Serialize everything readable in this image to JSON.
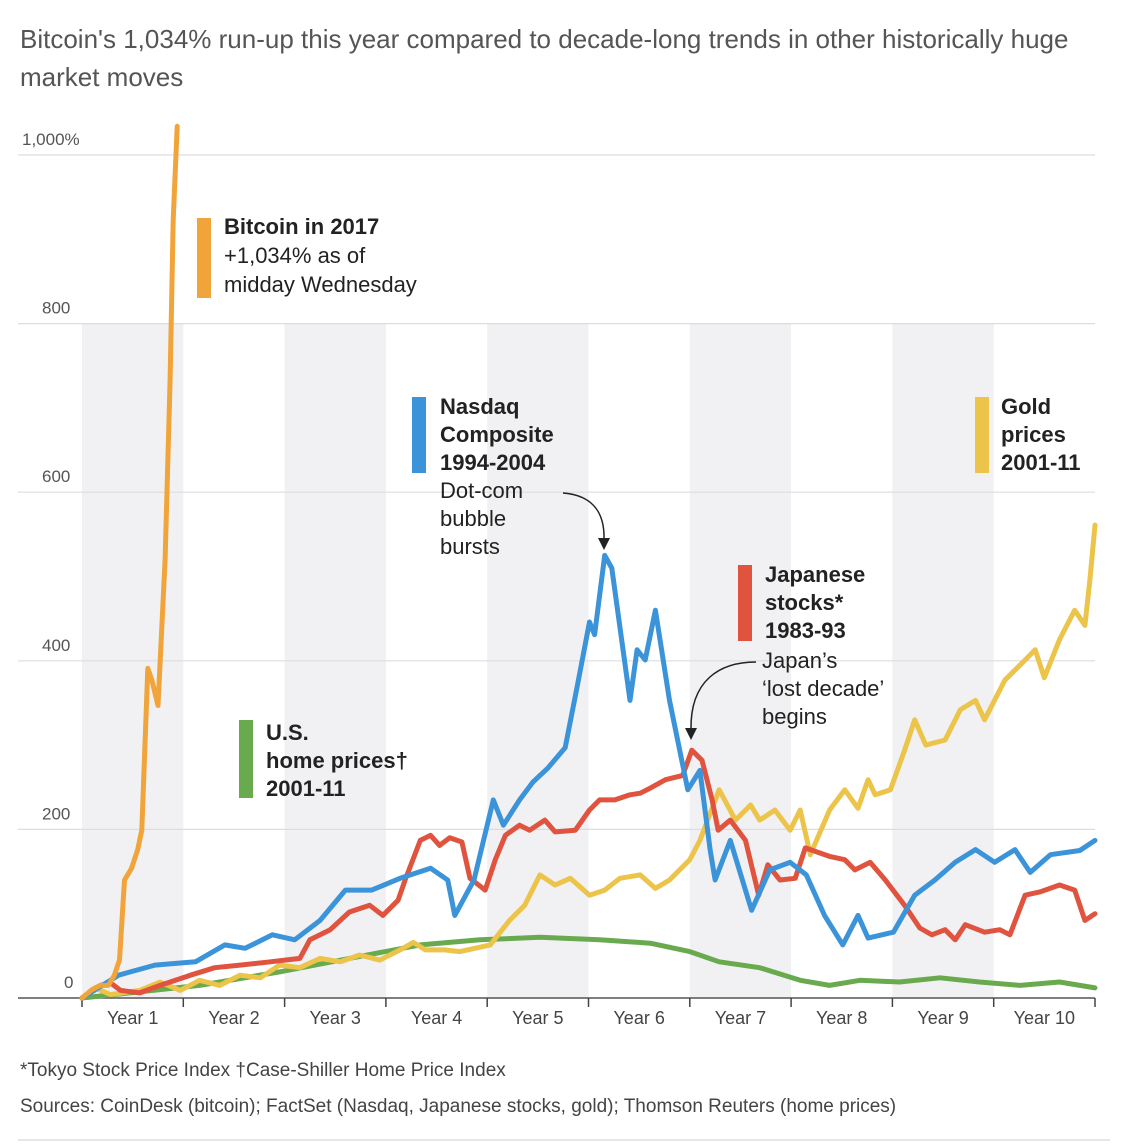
{
  "title": "Bitcoin's 1,034% run-up this year compared to decade-long trends in other historically huge market moves",
  "footnote": "*Tokyo Stock Price Index   †Case-Shiller Home Price Index",
  "sources": "Sources: CoinDesk (bitcoin); FactSet (Nasdaq, Japanese stocks, gold); Thomson Reuters (home prices)",
  "chart_data": {
    "type": "line",
    "title": "Bitcoin's 1,034% run-up this year compared to decade-long trends in other historically huge market moves",
    "xlim": [
      0,
      10
    ],
    "ylim": [
      0,
      1000
    ],
    "grid": true,
    "x_tick_labels": [
      "Year 1",
      "Year 2",
      "Year 3",
      "Year 4",
      "Year 5",
      "Year 6",
      "Year 7",
      "Year 8",
      "Year 9",
      "Year 10"
    ],
    "y_tick_labels": [
      "0",
      "200",
      "400",
      "600",
      "800",
      "1,000%"
    ],
    "y_ticks": [
      0,
      200,
      400,
      600,
      800,
      1000
    ],
    "shaded_years": [
      1,
      3,
      5,
      7,
      9
    ],
    "series": [
      {
        "name": "Bitcoin in 2017",
        "color": "#f0a43a",
        "label_lines": [
          "Bitcoin in 2017"
        ],
        "note_lines": [
          "+1,034% as of",
          "midday Wednesday"
        ],
        "points": [
          [
            0,
            0
          ],
          [
            0.1,
            10
          ],
          [
            0.18,
            15
          ],
          [
            0.26,
            15
          ],
          [
            0.32,
            27
          ],
          [
            0.37,
            45
          ],
          [
            0.42,
            140
          ],
          [
            0.49,
            154
          ],
          [
            0.55,
            176
          ],
          [
            0.59,
            199
          ],
          [
            0.65,
            391
          ],
          [
            0.69,
            377
          ],
          [
            0.75,
            347
          ],
          [
            0.82,
            520
          ],
          [
            0.87,
            733
          ],
          [
            0.9,
            923
          ],
          [
            0.94,
            1034
          ]
        ]
      },
      {
        "name": "Nasdaq Composite 1994-2004",
        "color": "#3b94d9",
        "label_lines": [
          "Nasdaq",
          "Composite",
          "1994-2004"
        ],
        "note_lines": [
          "Dot-com",
          "bubble",
          "bursts"
        ],
        "points": [
          [
            0,
            0
          ],
          [
            0.36,
            27
          ],
          [
            0.72,
            39
          ],
          [
            1.12,
            43
          ],
          [
            1.41,
            63
          ],
          [
            1.61,
            59
          ],
          [
            1.88,
            75
          ],
          [
            2.1,
            69
          ],
          [
            2.35,
            92
          ],
          [
            2.6,
            128
          ],
          [
            2.86,
            128
          ],
          [
            3.14,
            142
          ],
          [
            3.44,
            154
          ],
          [
            3.61,
            140
          ],
          [
            3.68,
            98
          ],
          [
            3.87,
            140
          ],
          [
            4.06,
            235
          ],
          [
            4.16,
            205
          ],
          [
            4.32,
            235
          ],
          [
            4.45,
            256
          ],
          [
            4.6,
            273
          ],
          [
            4.77,
            297
          ],
          [
            4.9,
            377
          ],
          [
            5.01,
            446
          ],
          [
            5.06,
            431
          ],
          [
            5.16,
            525
          ],
          [
            5.23,
            510
          ],
          [
            5.41,
            353
          ],
          [
            5.48,
            413
          ],
          [
            5.56,
            401
          ],
          [
            5.66,
            460
          ],
          [
            5.8,
            353
          ],
          [
            5.98,
            247
          ],
          [
            6.1,
            270
          ],
          [
            6.2,
            176
          ],
          [
            6.25,
            140
          ],
          [
            6.4,
            187
          ],
          [
            6.61,
            104
          ],
          [
            6.79,
            152
          ],
          [
            6.99,
            161
          ],
          [
            7.15,
            146
          ],
          [
            7.33,
            98
          ],
          [
            7.51,
            63
          ],
          [
            7.66,
            98
          ],
          [
            7.76,
            71
          ],
          [
            8.01,
            78
          ],
          [
            8.22,
            122
          ],
          [
            8.42,
            140
          ],
          [
            8.62,
            161
          ],
          [
            8.82,
            176
          ],
          [
            9.01,
            161
          ],
          [
            9.21,
            176
          ],
          [
            9.36,
            149
          ],
          [
            9.56,
            170
          ],
          [
            9.85,
            175
          ],
          [
            10,
            187
          ]
        ]
      },
      {
        "name": "Japanese stocks* 1983-93",
        "color": "#e0533f",
        "label_lines": [
          "Japanese",
          "stocks*",
          "1983-93"
        ],
        "note_lines": [
          "Japan’s",
          "‘lost decade’",
          "begins"
        ],
        "points": [
          [
            0,
            0
          ],
          [
            0.18,
            15
          ],
          [
            0.28,
            18
          ],
          [
            0.38,
            9
          ],
          [
            0.57,
            6
          ],
          [
            0.77,
            15
          ],
          [
            1.07,
            27
          ],
          [
            1.31,
            36
          ],
          [
            1.56,
            39
          ],
          [
            1.86,
            43
          ],
          [
            2.15,
            47
          ],
          [
            2.25,
            69
          ],
          [
            2.45,
            81
          ],
          [
            2.64,
            102
          ],
          [
            2.84,
            110
          ],
          [
            2.97,
            98
          ],
          [
            3.12,
            116
          ],
          [
            3.19,
            140
          ],
          [
            3.34,
            187
          ],
          [
            3.44,
            193
          ],
          [
            3.53,
            181
          ],
          [
            3.63,
            190
          ],
          [
            3.75,
            185
          ],
          [
            3.83,
            142
          ],
          [
            3.98,
            128
          ],
          [
            4.08,
            164
          ],
          [
            4.18,
            193
          ],
          [
            4.32,
            205
          ],
          [
            4.42,
            199
          ],
          [
            4.57,
            211
          ],
          [
            4.67,
            197
          ],
          [
            4.87,
            199
          ],
          [
            5.01,
            223
          ],
          [
            5.11,
            235
          ],
          [
            5.26,
            235
          ],
          [
            5.41,
            241
          ],
          [
            5.51,
            243
          ],
          [
            5.61,
            249
          ],
          [
            5.76,
            259
          ],
          [
            5.93,
            264
          ],
          [
            6.02,
            294
          ],
          [
            6.12,
            282
          ],
          [
            6.22,
            235
          ],
          [
            6.28,
            199
          ],
          [
            6.4,
            211
          ],
          [
            6.55,
            187
          ],
          [
            6.68,
            122
          ],
          [
            6.77,
            158
          ],
          [
            6.89,
            140
          ],
          [
            7.04,
            142
          ],
          [
            7.14,
            178
          ],
          [
            7.38,
            168
          ],
          [
            7.53,
            164
          ],
          [
            7.63,
            152
          ],
          [
            7.78,
            161
          ],
          [
            7.93,
            140
          ],
          [
            8.12,
            110
          ],
          [
            8.27,
            83
          ],
          [
            8.39,
            75
          ],
          [
            8.52,
            81
          ],
          [
            8.62,
            69
          ],
          [
            8.72,
            87
          ],
          [
            8.91,
            78
          ],
          [
            9.06,
            81
          ],
          [
            9.16,
            75
          ],
          [
            9.31,
            122
          ],
          [
            9.46,
            126
          ],
          [
            9.65,
            134
          ],
          [
            9.8,
            128
          ],
          [
            9.9,
            92
          ],
          [
            10,
            100
          ]
        ]
      },
      {
        "name": "Gold prices 2001-11",
        "color": "#ecc44a",
        "label_lines": [
          "Gold",
          "prices",
          "2001-11"
        ],
        "note_lines": [],
        "points": [
          [
            0,
            0
          ],
          [
            0.13,
            12
          ],
          [
            0.28,
            4
          ],
          [
            0.57,
            9
          ],
          [
            0.77,
            19
          ],
          [
            0.97,
            9
          ],
          [
            1.16,
            21
          ],
          [
            1.36,
            15
          ],
          [
            1.56,
            27
          ],
          [
            1.76,
            24
          ],
          [
            1.95,
            39
          ],
          [
            2.15,
            36
          ],
          [
            2.35,
            47
          ],
          [
            2.55,
            43
          ],
          [
            2.74,
            51
          ],
          [
            2.94,
            45
          ],
          [
            3.14,
            57
          ],
          [
            3.27,
            66
          ],
          [
            3.39,
            57
          ],
          [
            3.58,
            57
          ],
          [
            3.73,
            55
          ],
          [
            3.88,
            59
          ],
          [
            4.03,
            63
          ],
          [
            4.22,
            92
          ],
          [
            4.37,
            110
          ],
          [
            4.52,
            146
          ],
          [
            4.67,
            134
          ],
          [
            4.82,
            142
          ],
          [
            5.01,
            122
          ],
          [
            5.16,
            128
          ],
          [
            5.31,
            142
          ],
          [
            5.51,
            146
          ],
          [
            5.66,
            130
          ],
          [
            5.8,
            140
          ],
          [
            6.0,
            164
          ],
          [
            6.1,
            187
          ],
          [
            6.29,
            247
          ],
          [
            6.45,
            211
          ],
          [
            6.6,
            229
          ],
          [
            6.69,
            211
          ],
          [
            6.84,
            223
          ],
          [
            6.99,
            199
          ],
          [
            7.09,
            223
          ],
          [
            7.19,
            170
          ],
          [
            7.38,
            223
          ],
          [
            7.53,
            247
          ],
          [
            7.66,
            225
          ],
          [
            7.76,
            259
          ],
          [
            7.83,
            241
          ],
          [
            7.98,
            247
          ],
          [
            8.12,
            294
          ],
          [
            8.22,
            330
          ],
          [
            8.33,
            300
          ],
          [
            8.52,
            306
          ],
          [
            8.67,
            342
          ],
          [
            8.82,
            353
          ],
          [
            8.91,
            330
          ],
          [
            9.11,
            377
          ],
          [
            9.31,
            401
          ],
          [
            9.41,
            413
          ],
          [
            9.5,
            380
          ],
          [
            9.65,
            425
          ],
          [
            9.8,
            460
          ],
          [
            9.9,
            442
          ],
          [
            9.95,
            496
          ],
          [
            10,
            561
          ]
        ]
      },
      {
        "name": "U.S. home prices† 2001-11",
        "color": "#6aaa4f",
        "label_lines": [
          "U.S.",
          "home prices†",
          "2001-11"
        ],
        "note_lines": [],
        "points": [
          [
            0,
            0
          ],
          [
            0.47,
            6
          ],
          [
            1.16,
            15
          ],
          [
            1.95,
            31
          ],
          [
            2.64,
            47
          ],
          [
            3.34,
            63
          ],
          [
            3.93,
            69
          ],
          [
            4.52,
            72
          ],
          [
            5.11,
            69
          ],
          [
            5.61,
            65
          ],
          [
            6.0,
            55
          ],
          [
            6.29,
            43
          ],
          [
            6.69,
            36
          ],
          [
            7.09,
            21
          ],
          [
            7.38,
            15
          ],
          [
            7.68,
            21
          ],
          [
            8.07,
            19
          ],
          [
            8.47,
            24
          ],
          [
            8.86,
            19
          ],
          [
            9.26,
            15
          ],
          [
            9.65,
            19
          ],
          [
            10,
            12
          ]
        ]
      }
    ]
  }
}
